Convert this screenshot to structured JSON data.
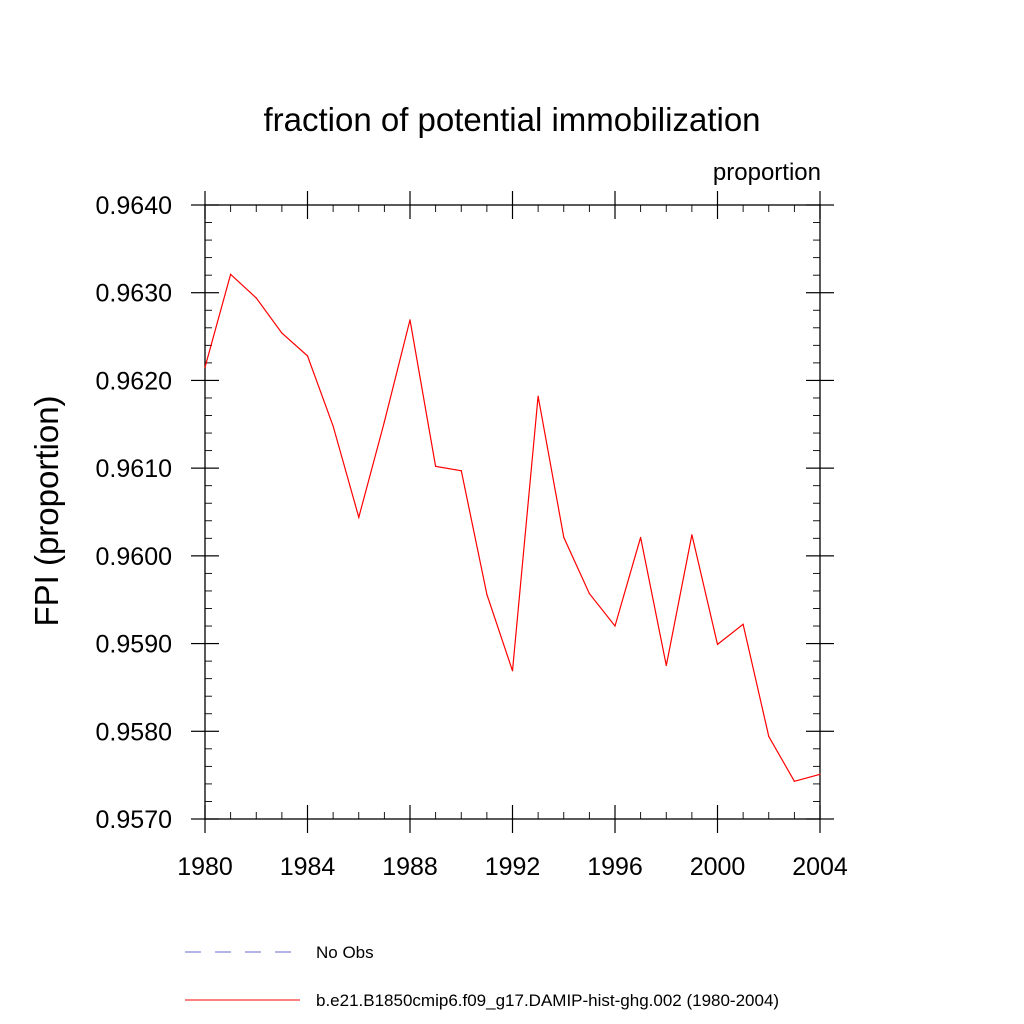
{
  "chart_data": {
    "type": "line",
    "title": "fraction of potential immobilization",
    "unit_label": "proportion",
    "ylabel": "FPI  (proportion)",
    "xlabel": "",
    "xlim": [
      1980,
      2004
    ],
    "ylim": [
      0.957,
      0.964
    ],
    "x_ticks": [
      1980,
      1984,
      1988,
      1992,
      1996,
      2000,
      2004
    ],
    "x_tick_labels": [
      "1980",
      "1984",
      "1988",
      "1992",
      "1996",
      "2000",
      "2004"
    ],
    "y_ticks": [
      0.957,
      0.958,
      0.959,
      0.96,
      0.961,
      0.962,
      0.963,
      0.964
    ],
    "y_tick_labels": [
      "0.9570",
      "0.9580",
      "0.9590",
      "0.9600",
      "0.9610",
      "0.9620",
      "0.9630",
      "0.9640"
    ],
    "grid": false,
    "legend_position": "bottom",
    "series": [
      {
        "name": "No Obs",
        "color": "#6a6acd",
        "dash": true,
        "x": [],
        "y": []
      },
      {
        "name": "b.e21.B1850cmip6.f09_g17.DAMIP-hist-ghg.002 (1980-2004)",
        "color": "#ff0000",
        "dash": false,
        "x": [
          1980,
          1981,
          1982,
          1983,
          1984,
          1985,
          1986,
          1987,
          1988,
          1989,
          1990,
          1991,
          1992,
          1993,
          1994,
          1995,
          1996,
          1997,
          1998,
          1999,
          2000,
          2001,
          2002,
          2003,
          2004
        ],
        "y": [
          0.96215,
          0.96321,
          0.96294,
          0.96254,
          0.96228,
          0.96148,
          0.96044,
          0.96153,
          0.96269,
          0.96102,
          0.96097,
          0.95956,
          0.95869,
          0.96182,
          0.96021,
          0.95957,
          0.9592,
          0.96021,
          0.95875,
          0.96024,
          0.95899,
          0.95922,
          0.95794,
          0.95743,
          0.95751
        ]
      }
    ]
  }
}
